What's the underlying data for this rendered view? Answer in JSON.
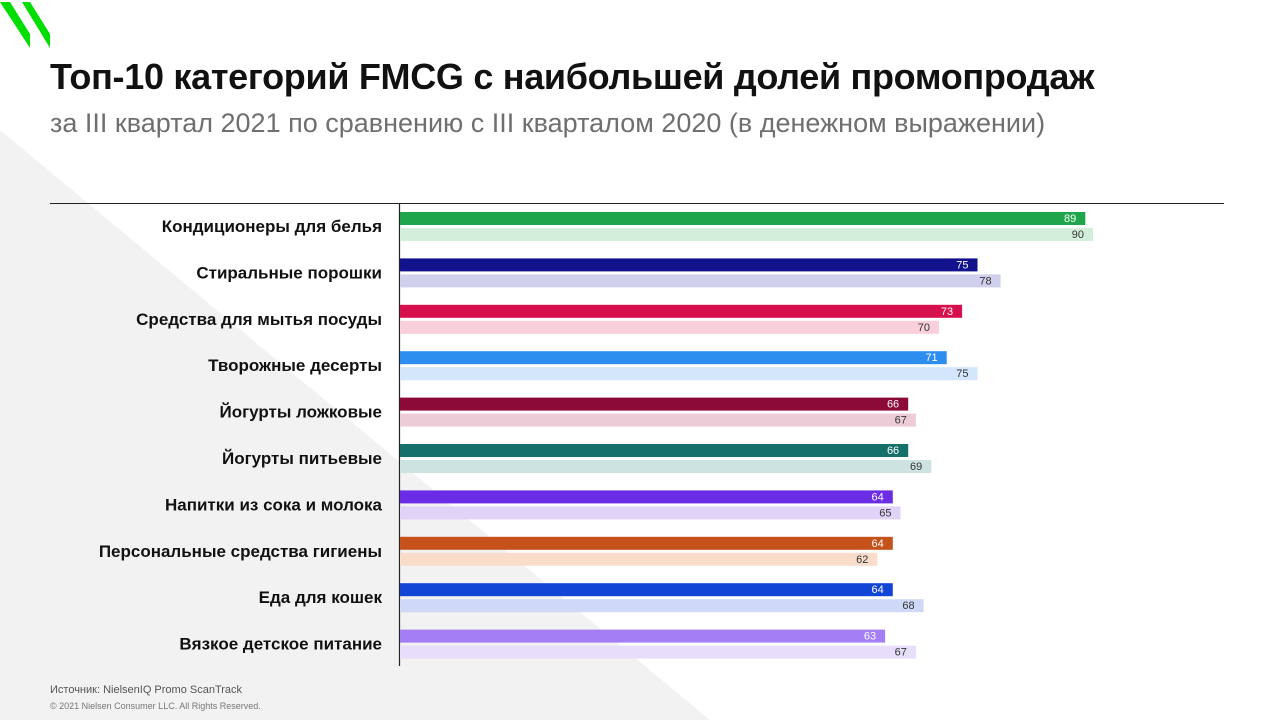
{
  "header": {
    "title": "Топ-10 категорий FMCG с наибольшей долей промопродаж",
    "subtitle": "за III квартал 2021 по сравнению с III кварталом 2020 (в денежном выражении)"
  },
  "footer": {
    "source": "Источник: NielsenIQ  Promo ScanTrack",
    "copyright": "© 2021 Nielsen Consumer LLC. All Rights Reserved."
  },
  "brand": {
    "logo_icon": "nielseniq-logo-icon",
    "logo_color": "#00dd00"
  },
  "chart_data": {
    "type": "bar",
    "orientation": "horizontal",
    "title": "Топ-10 категорий FMCG с наибольшей долей промопродаж",
    "subtitle": "за III квартал 2021 по сравнению с III кварталом 2020 (в денежном выражении)",
    "xlim": [
      0,
      100
    ],
    "grid": false,
    "legend": "none",
    "categories": [
      "Кондиционеры для белья",
      "Стиральные порошки",
      "Средства для мытья посуды",
      "Творожные десерты",
      "Йогурты ложковые",
      "Йогурты питьевые",
      "Напитки из сока и молока",
      "Персональные средства гигиены",
      "Еда для кошек",
      "Вязкое детское питание"
    ],
    "series": [
      {
        "values": [
          89,
          75,
          73,
          71,
          66,
          66,
          64,
          64,
          64,
          63
        ]
      },
      {
        "values": [
          90,
          78,
          70,
          75,
          67,
          69,
          65,
          62,
          68,
          67
        ]
      }
    ],
    "colors": [
      {
        "dark": "#1fa64a",
        "light": "#d3efdc"
      },
      {
        "dark": "#12128c",
        "light": "#d0cfee"
      },
      {
        "dark": "#d60f4d",
        "light": "#f8cfdb"
      },
      {
        "dark": "#2d8ef0",
        "light": "#d3e6fb"
      },
      {
        "dark": "#8c0a38",
        "light": "#ecccd7"
      },
      {
        "dark": "#157069",
        "light": "#cde3e1"
      },
      {
        "dark": "#6b2ce6",
        "light": "#e0d3f7"
      },
      {
        "dark": "#c4521a",
        "light": "#fadccb"
      },
      {
        "dark": "#1244d6",
        "light": "#cfd8f6"
      },
      {
        "dark": "#a37ef5",
        "light": "#e6defb"
      }
    ]
  }
}
